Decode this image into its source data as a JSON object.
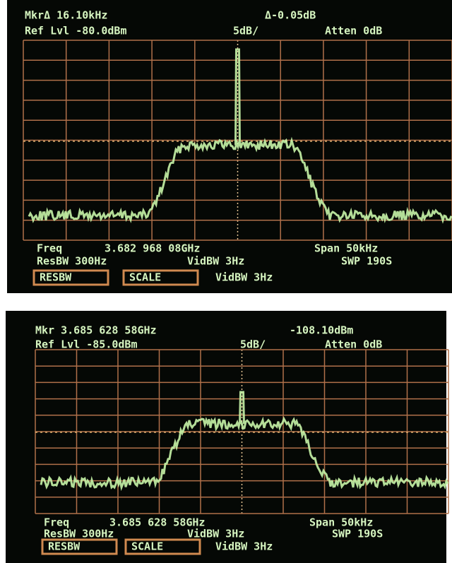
{
  "screens": [
    {
      "header": {
        "marker": "MkrΔ 16.10kHz",
        "marker_value": "Δ-0.05dB",
        "ref_level": "Ref Lvl -80.0dBm",
        "scale": "5dB/",
        "atten": "Atten 0dB"
      },
      "footer": {
        "freq_label": "Freq",
        "freq": "3.682 968 08GHz",
        "span": "Span 50kHz",
        "resbw": "ResBW 300Hz",
        "vidbw": "VidBW 3Hz",
        "sweep": "SWP 190S"
      },
      "softkeys": [
        "RESBW",
        "SCALE",
        "VidBW 3Hz"
      ]
    },
    {
      "header": {
        "marker": "Mkr 3.685 628 58GHz",
        "marker_value": "-108.10dBm",
        "ref_level": "Ref Lvl -85.0dBm",
        "scale": "5dB/",
        "atten": "Atten 0dB"
      },
      "footer": {
        "freq_label": "Freq",
        "freq": "3.685 628 58GHz",
        "span": "Span 50kHz",
        "resbw": "ResBW 300Hz",
        "vidbw": "VidBW 3Hz",
        "sweep": "SWP 190S"
      },
      "softkeys": [
        "RESBW",
        "SCALE",
        "VidBW 3Hz"
      ]
    }
  ]
}
